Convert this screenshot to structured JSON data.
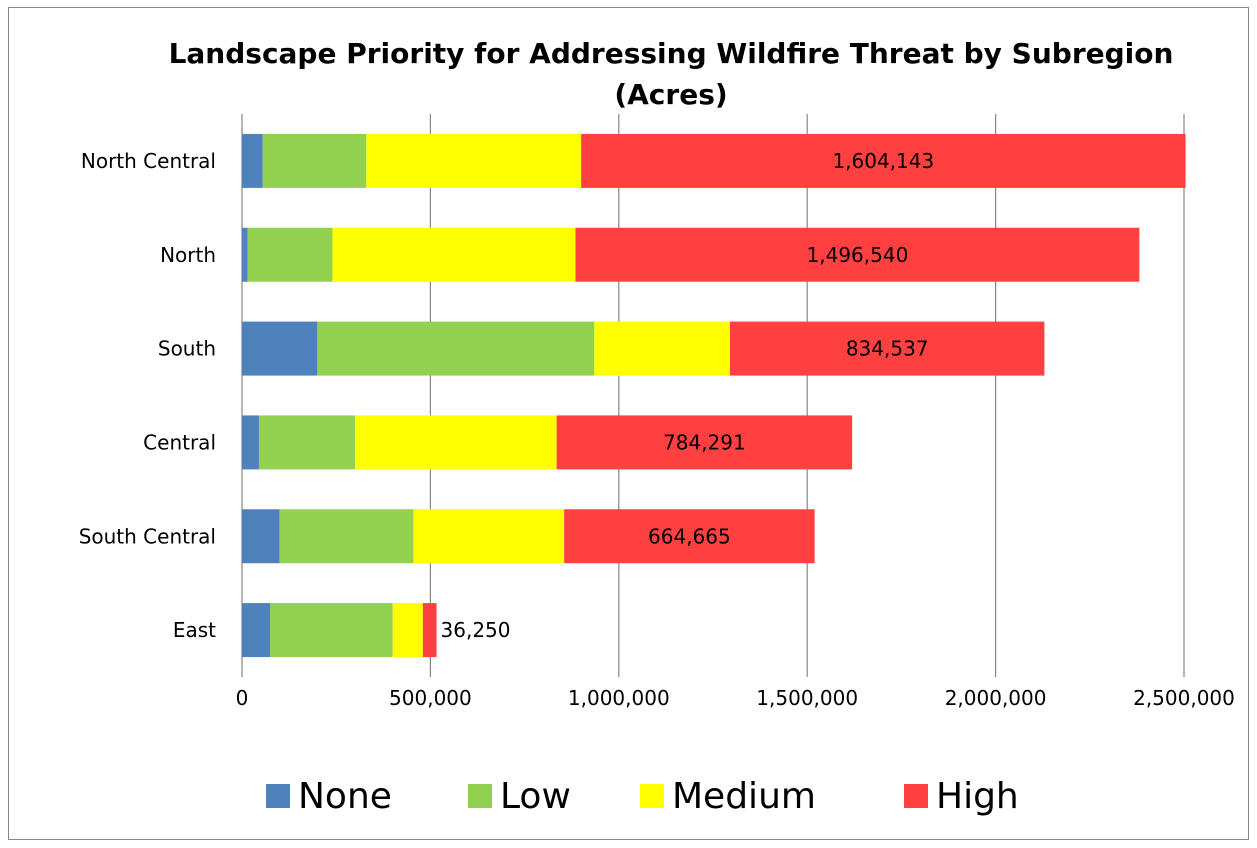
{
  "chart_data": {
    "type": "bar",
    "orientation": "horizontal",
    "stacked": true,
    "title_line1": "Landscape Priority for Addressing Wildfire Threat by Subregion",
    "title_line2": "(Acres)",
    "categories": [
      "North Central",
      "North",
      "South",
      "Central",
      "South Central",
      "East"
    ],
    "series": [
      {
        "name": "None",
        "color": "#4F81BD",
        "values": [
          55000,
          15000,
          200000,
          45000,
          100000,
          75000
        ]
      },
      {
        "name": "Low",
        "color": "#92D050",
        "values": [
          275000,
          225000,
          735000,
          255000,
          355000,
          325000
        ]
      },
      {
        "name": "Medium",
        "color": "#FFFF00",
        "values": [
          570000,
          645000,
          360000,
          535000,
          400000,
          80000
        ]
      },
      {
        "name": "High",
        "color": "#FF4040",
        "values": [
          1604143,
          1496540,
          834537,
          784291,
          664665,
          36250
        ]
      }
    ],
    "data_labels": [
      "1,604,143",
      "1,496,540",
      "834,537",
      "784,291",
      "664,665",
      "36,250"
    ],
    "x_ticks": [
      0,
      500000,
      1000000,
      1500000,
      2000000,
      2500000
    ],
    "x_tick_labels": [
      "0",
      "500,000",
      "1,000,000",
      "1,500,000",
      "2,000,000",
      "2,500,000"
    ],
    "xlim": [
      0,
      2500000
    ],
    "gridlines": "vertical",
    "legend_position": "bottom"
  }
}
